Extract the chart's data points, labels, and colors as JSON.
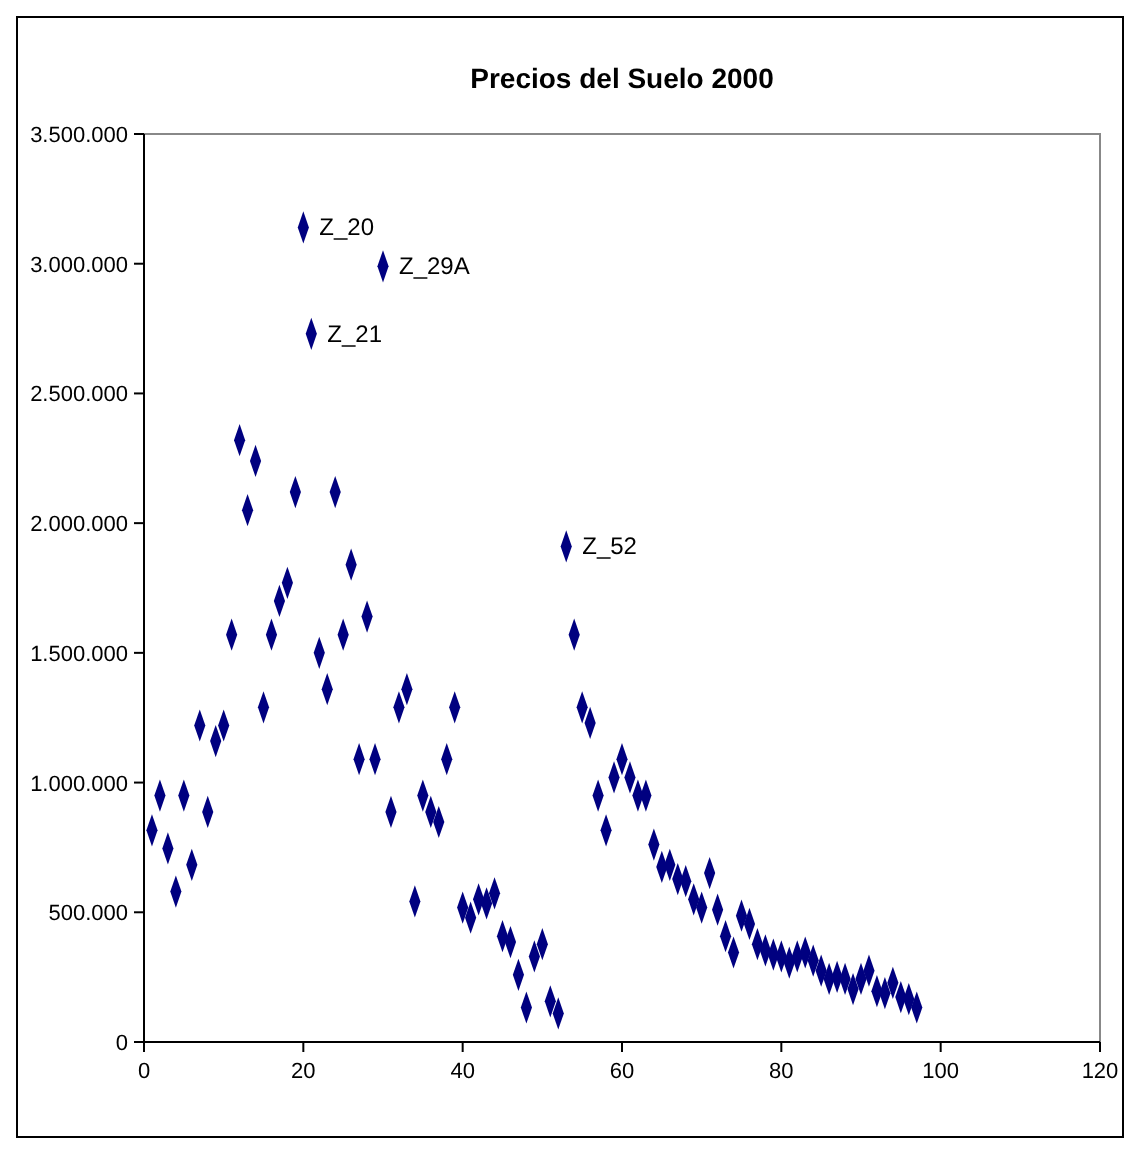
{
  "chart_data": {
    "type": "scatter",
    "title": "Precios del Suelo 2000",
    "marker": "diamond",
    "grid": false,
    "series": [
      {
        "color": "#000080",
        "x": [
          1,
          2,
          3,
          4,
          5,
          6,
          7,
          8,
          9,
          10,
          11,
          12,
          13,
          14,
          15,
          16,
          17,
          18,
          19,
          20,
          21,
          22,
          23,
          24,
          25,
          26,
          27,
          28,
          29,
          30,
          31,
          32,
          33,
          34,
          35,
          36,
          37,
          38,
          39,
          40,
          41,
          42,
          43,
          44,
          45,
          46,
          47,
          48,
          49,
          50,
          51,
          52,
          53,
          54,
          55,
          56,
          57,
          58,
          59,
          60,
          61,
          62,
          63,
          64,
          65,
          66,
          67,
          68,
          69,
          70,
          71,
          72,
          73,
          74,
          75,
          76,
          77,
          78,
          79,
          80,
          81,
          82,
          83,
          84,
          85,
          86,
          87,
          88,
          89,
          90,
          91,
          92,
          93,
          94,
          95,
          96,
          97
        ],
        "values": [
          816000,
          950000,
          746000,
          580000,
          950000,
          683000,
          1220000,
          887000,
          1160000,
          1220000,
          1570000,
          2320000,
          2050000,
          2240000,
          1290000,
          1570000,
          1700000,
          1770000,
          2120000,
          3140000,
          2730000,
          1500000,
          1360000,
          2120000,
          1570000,
          1840000,
          1090000,
          1640000,
          1090000,
          2990000,
          887000,
          1290000,
          1360000,
          542000,
          950000,
          887000,
          848000,
          1090000,
          1290000,
          518000,
          479000,
          550000,
          534000,
          573000,
          408000,
          385000,
          259000,
          133000,
          330000,
          377000,
          157000,
          110000,
          1910000,
          1570000,
          1290000,
          1230000,
          950000,
          816000,
          1020000,
          1090000,
          1020000,
          950000,
          950000,
          761000,
          675000,
          683000,
          628000,
          620000,
          550000,
          518000,
          651000,
          510000,
          408000,
          345000,
          487000,
          455000,
          377000,
          353000,
          337000,
          330000,
          306000,
          330000,
          345000,
          314000,
          275000,
          243000,
          251000,
          243000,
          204000,
          243000,
          275000,
          196000,
          188000,
          228000,
          173000,
          165000,
          133000
        ]
      }
    ],
    "xlim": [
      0,
      120
    ],
    "xticks": [
      0,
      20,
      40,
      60,
      80,
      100,
      120
    ],
    "ylim": [
      0,
      3500000
    ],
    "yticks": [
      {
        "value": 0,
        "label": "0"
      },
      {
        "value": 500000,
        "label": "500.000"
      },
      {
        "value": 1000000,
        "label": "1.000.000"
      },
      {
        "value": 1500000,
        "label": "1.500.000"
      },
      {
        "value": 2000000,
        "label": "2.000.000"
      },
      {
        "value": 2500000,
        "label": "2.500.000"
      },
      {
        "value": 3000000,
        "label": "3.000.000"
      },
      {
        "value": 3500000,
        "label": "3.500.000"
      }
    ],
    "annotations": [
      {
        "text": "Z_20",
        "x": 20,
        "y": 3140000
      },
      {
        "text": "Z_29A",
        "x": 30,
        "y": 2990000
      },
      {
        "text": "Z_21",
        "x": 21,
        "y": 2730000
      },
      {
        "text": "Z_52",
        "x": 53,
        "y": 1910000
      }
    ]
  }
}
